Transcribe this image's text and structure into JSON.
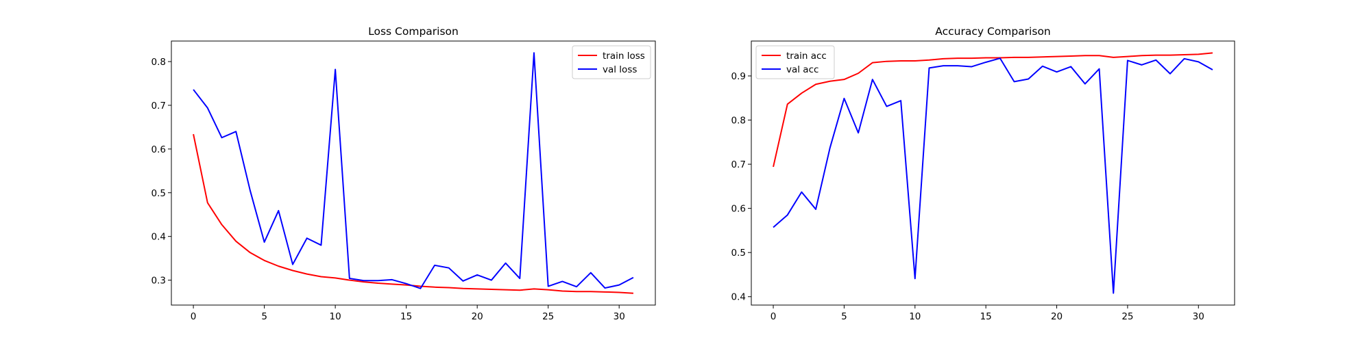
{
  "chart_data": [
    {
      "type": "line",
      "title": "Loss Comparison",
      "xlabel": "",
      "ylabel": "",
      "xlim": [
        -1.55,
        32.55
      ],
      "ylim": [
        0.243,
        0.847
      ],
      "xticks": [
        0,
        5,
        10,
        15,
        20,
        25,
        30
      ],
      "yticks": [
        0.3,
        0.4,
        0.5,
        0.6,
        0.7,
        0.8
      ],
      "xtick_labels": [
        "0",
        "5",
        "10",
        "15",
        "20",
        "25",
        "30"
      ],
      "ytick_labels": [
        "0.3",
        "0.4",
        "0.5",
        "0.6",
        "0.7",
        "0.8"
      ],
      "grid": false,
      "legend_position": "upper right",
      "x": [
        0,
        1,
        2,
        3,
        4,
        5,
        6,
        7,
        8,
        9,
        10,
        11,
        12,
        13,
        14,
        15,
        16,
        17,
        18,
        19,
        20,
        21,
        22,
        23,
        24,
        25,
        26,
        27,
        28,
        29,
        30,
        31
      ],
      "series": [
        {
          "name": "train loss",
          "color": "#ff0000",
          "values": [
            0.634,
            0.477,
            0.427,
            0.389,
            0.363,
            0.345,
            0.332,
            0.322,
            0.314,
            0.308,
            0.305,
            0.3,
            0.296,
            0.293,
            0.291,
            0.289,
            0.286,
            0.284,
            0.283,
            0.281,
            0.28,
            0.279,
            0.278,
            0.277,
            0.28,
            0.278,
            0.275,
            0.274,
            0.274,
            0.273,
            0.272,
            0.27
          ]
        },
        {
          "name": "val loss",
          "color": "#0000ff",
          "values": [
            0.736,
            0.694,
            0.626,
            0.64,
            0.505,
            0.387,
            0.459,
            0.336,
            0.396,
            0.38,
            0.782,
            0.304,
            0.299,
            0.299,
            0.301,
            0.292,
            0.281,
            0.334,
            0.328,
            0.298,
            0.312,
            0.3,
            0.339,
            0.304,
            0.82,
            0.286,
            0.297,
            0.285,
            0.317,
            0.282,
            0.289,
            0.306
          ]
        }
      ]
    },
    {
      "type": "line",
      "title": "Accuracy Comparison",
      "xlabel": "",
      "ylabel": "",
      "xlim": [
        -1.55,
        32.55
      ],
      "ylim": [
        0.381,
        0.979
      ],
      "xticks": [
        0,
        5,
        10,
        15,
        20,
        25,
        30
      ],
      "yticks": [
        0.4,
        0.5,
        0.6,
        0.7,
        0.8,
        0.9
      ],
      "xtick_labels": [
        "0",
        "5",
        "10",
        "15",
        "20",
        "25",
        "30"
      ],
      "ytick_labels": [
        "0.4",
        "0.5",
        "0.6",
        "0.7",
        "0.8",
        "0.9"
      ],
      "grid": false,
      "legend_position": "upper left",
      "x": [
        0,
        1,
        2,
        3,
        4,
        5,
        6,
        7,
        8,
        9,
        10,
        11,
        12,
        13,
        14,
        15,
        16,
        17,
        18,
        19,
        20,
        21,
        22,
        23,
        24,
        25,
        26,
        27,
        28,
        29,
        30,
        31
      ],
      "series": [
        {
          "name": "train acc",
          "color": "#ff0000",
          "values": [
            0.694,
            0.836,
            0.861,
            0.881,
            0.888,
            0.892,
            0.906,
            0.93,
            0.933,
            0.934,
            0.934,
            0.936,
            0.939,
            0.94,
            0.94,
            0.941,
            0.941,
            0.942,
            0.942,
            0.943,
            0.944,
            0.945,
            0.946,
            0.946,
            0.942,
            0.944,
            0.946,
            0.947,
            0.947,
            0.948,
            0.949,
            0.952
          ]
        },
        {
          "name": "val acc",
          "color": "#0000ff",
          "values": [
            0.557,
            0.585,
            0.637,
            0.598,
            0.737,
            0.849,
            0.771,
            0.892,
            0.831,
            0.844,
            0.441,
            0.918,
            0.923,
            0.923,
            0.921,
            0.931,
            0.94,
            0.887,
            0.893,
            0.922,
            0.909,
            0.921,
            0.882,
            0.916,
            0.408,
            0.935,
            0.925,
            0.936,
            0.905,
            0.939,
            0.932,
            0.914
          ]
        }
      ]
    }
  ]
}
